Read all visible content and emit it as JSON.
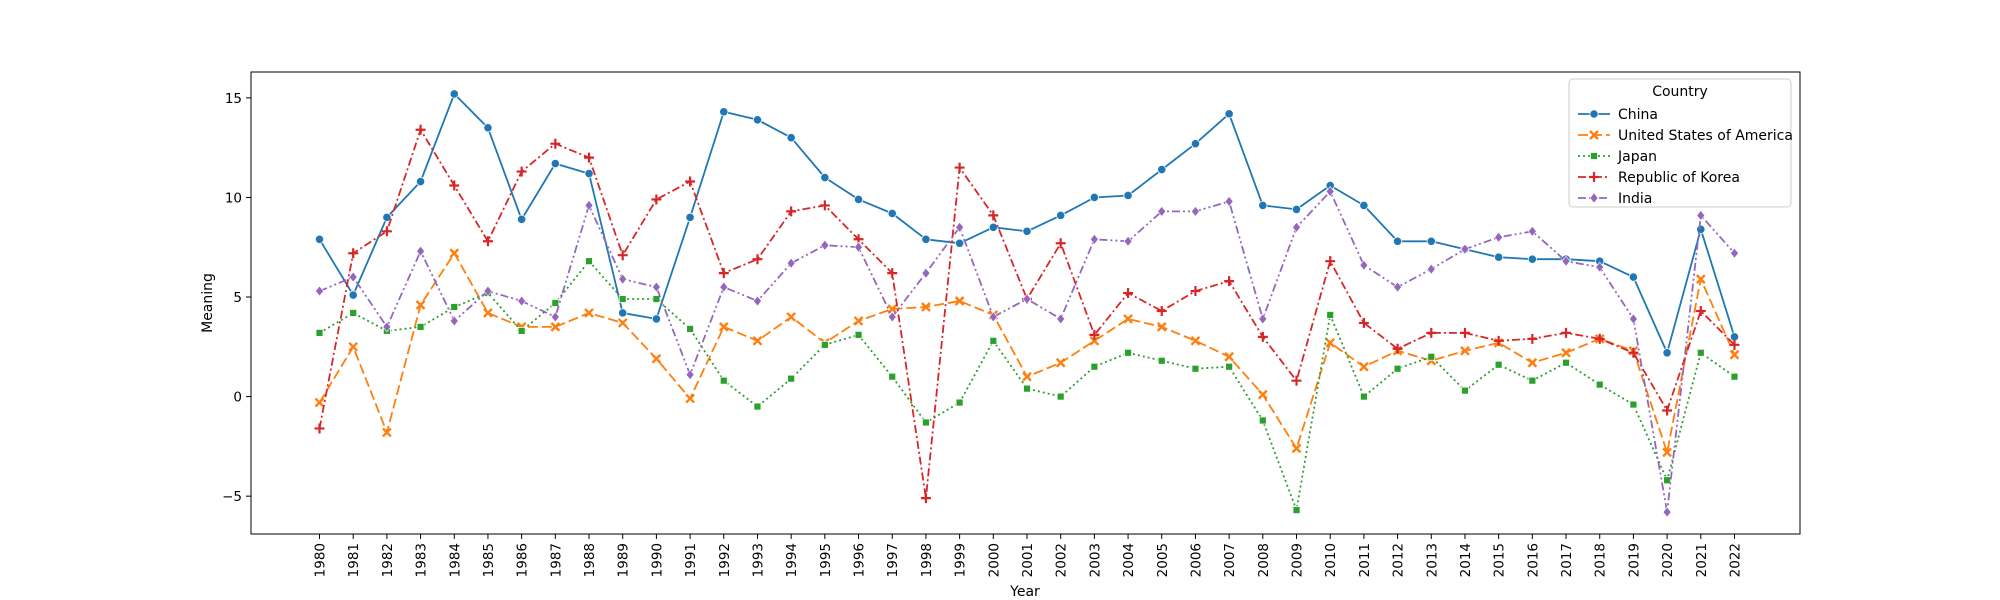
{
  "chart_data": {
    "type": "line",
    "xlabel": "Year",
    "ylabel": "Meaning",
    "ylim": [
      -6.9,
      16.3
    ],
    "yticks": [
      -5,
      0,
      5,
      10,
      15
    ],
    "grid": false,
    "legend_title": "Country",
    "legend_position": "top-right",
    "x": [
      "1980",
      "1981",
      "1982",
      "1983",
      "1984",
      "1985",
      "1986",
      "1987",
      "1988",
      "1989",
      "1990",
      "1991",
      "1992",
      "1993",
      "1994",
      "1995",
      "1996",
      "1997",
      "1998",
      "1999",
      "2000",
      "2001",
      "2002",
      "2003",
      "2004",
      "2005",
      "2006",
      "2007",
      "2008",
      "2009",
      "2010",
      "2011",
      "2012",
      "2013",
      "2014",
      "2015",
      "2016",
      "2017",
      "2018",
      "2019",
      "2020",
      "2021",
      "2022"
    ],
    "series": [
      {
        "name": "China",
        "color": "#1f77b4",
        "dash": "solid",
        "marker": "circle",
        "values": [
          7.9,
          5.1,
          9.0,
          10.8,
          15.2,
          13.5,
          8.9,
          11.7,
          11.2,
          4.2,
          3.9,
          9.0,
          14.3,
          13.9,
          13.0,
          11.0,
          9.9,
          9.2,
          7.9,
          7.7,
          8.5,
          8.3,
          9.1,
          10.0,
          10.1,
          11.4,
          12.7,
          14.2,
          9.6,
          9.4,
          10.6,
          9.6,
          7.8,
          7.8,
          7.4,
          7.0,
          6.9,
          6.9,
          6.8,
          6.0,
          2.2,
          8.4,
          3.0
        ]
      },
      {
        "name": "United States of America",
        "color": "#ff7f0e",
        "dash": "dashed",
        "marker": "x",
        "values": [
          -0.3,
          2.5,
          -1.8,
          4.6,
          7.2,
          4.2,
          3.5,
          3.5,
          4.2,
          3.7,
          1.9,
          -0.1,
          3.5,
          2.8,
          4.0,
          2.7,
          3.8,
          4.4,
          4.5,
          4.8,
          4.1,
          1.0,
          1.7,
          2.8,
          3.9,
          3.5,
          2.8,
          2.0,
          0.1,
          -2.6,
          2.7,
          1.5,
          2.3,
          1.8,
          2.3,
          2.7,
          1.7,
          2.2,
          2.9,
          2.3,
          -2.8,
          5.9,
          2.1
        ]
      },
      {
        "name": "Japan",
        "color": "#2ca02c",
        "dash": "dotted",
        "marker": "square",
        "values": [
          3.2,
          4.2,
          3.3,
          3.5,
          4.5,
          5.2,
          3.3,
          4.7,
          6.8,
          4.9,
          4.9,
          3.4,
          0.8,
          -0.5,
          0.9,
          2.6,
          3.1,
          1.0,
          -1.3,
          -0.3,
          2.8,
          0.4,
          0.0,
          1.5,
          2.2,
          1.8,
          1.4,
          1.5,
          -1.2,
          -5.7,
          4.1,
          0.0,
          1.4,
          2.0,
          0.3,
          1.6,
          0.8,
          1.7,
          0.6,
          -0.4,
          -4.2,
          2.2,
          1.0
        ]
      },
      {
        "name": "Republic of Korea",
        "color": "#d62728",
        "dash": "dashdot",
        "marker": "plus",
        "values": [
          -1.6,
          7.2,
          8.3,
          13.4,
          10.6,
          7.8,
          11.3,
          12.7,
          12.0,
          7.1,
          9.9,
          10.8,
          6.2,
          6.9,
          9.3,
          9.6,
          7.9,
          6.2,
          -5.1,
          11.5,
          9.1,
          4.9,
          7.7,
          3.1,
          5.2,
          4.3,
          5.3,
          5.8,
          3.0,
          0.8,
          6.8,
          3.7,
          2.4,
          3.2,
          3.2,
          2.8,
          2.9,
          3.2,
          2.9,
          2.2,
          -0.7,
          4.3,
          2.6
        ]
      },
      {
        "name": "India",
        "color": "#9467bd",
        "dash": "dashdotdot",
        "marker": "diamond",
        "values": [
          5.3,
          6.0,
          3.5,
          7.3,
          3.8,
          5.3,
          4.8,
          4.0,
          9.6,
          5.9,
          5.5,
          1.1,
          5.5,
          4.8,
          6.7,
          7.6,
          7.5,
          4.0,
          6.2,
          8.5,
          4.0,
          4.9,
          3.9,
          7.9,
          7.8,
          9.3,
          9.3,
          9.8,
          3.9,
          8.5,
          10.3,
          6.6,
          5.5,
          6.4,
          7.4,
          8.0,
          8.3,
          6.8,
          6.5,
          3.9,
          -5.8,
          9.1,
          7.2
        ]
      }
    ]
  }
}
